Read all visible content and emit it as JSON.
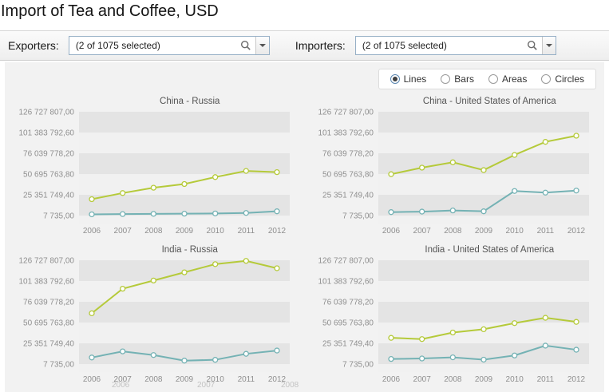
{
  "page": {
    "title": "Import of Tea and Coffee, USD"
  },
  "toolbar": {
    "exporters": {
      "label": "Exporters:",
      "value": "(2 of 1075 selected)"
    },
    "importers": {
      "label": "Importers:",
      "value": "(2 of 1075 selected)"
    }
  },
  "chart_controls": {
    "options": [
      {
        "label": "Lines",
        "selected": true
      },
      {
        "label": "Bars",
        "selected": false
      },
      {
        "label": "Areas",
        "selected": false
      },
      {
        "label": "Circles",
        "selected": false
      }
    ]
  },
  "ghost_labels": [
    "2006",
    "2007",
    "2008"
  ],
  "chart_data": [
    {
      "type": "line",
      "title": "China - Russia",
      "categories": [
        "2006",
        "2007",
        "2008",
        "2009",
        "2010",
        "2011",
        "2012"
      ],
      "y_ticks": [
        {
          "label": "126 727 807,00",
          "value": 126727807
        },
        {
          "label": "101 383 792,60",
          "value": 101383792.6
        },
        {
          "label": "76 039 778,20",
          "value": 76039778.2
        },
        {
          "label": "50 695 763,80",
          "value": 50695763.8
        },
        {
          "label": "25 351 749,40",
          "value": 25351749.4
        },
        {
          "label": "7 735,00",
          "value": 7735
        }
      ],
      "series": [
        {
          "name": "series-green",
          "color": "#b5ca3a",
          "values": [
            20000000,
            27500000,
            34000000,
            38500000,
            47000000,
            54500000,
            53000000
          ]
        },
        {
          "name": "series-teal",
          "color": "#74b2b4",
          "values": [
            1500000,
            1800000,
            2100000,
            2300000,
            2600000,
            3200000,
            5200000
          ]
        }
      ]
    },
    {
      "type": "line",
      "title": "China - United States of America",
      "categories": [
        "2006",
        "2007",
        "2008",
        "2009",
        "2010",
        "2011",
        "2012"
      ],
      "y_ticks": [
        {
          "label": "126 727 807,00",
          "value": 126727807
        },
        {
          "label": "101 383 792,60",
          "value": 101383792.6
        },
        {
          "label": "76 039 778,20",
          "value": 76039778.2
        },
        {
          "label": "50 695 763,80",
          "value": 50695763.8
        },
        {
          "label": "25 351 749,40",
          "value": 25351749.4
        },
        {
          "label": "7 735,00",
          "value": 7735
        }
      ],
      "series": [
        {
          "name": "series-green",
          "color": "#b5ca3a",
          "values": [
            50500000,
            58500000,
            65000000,
            55500000,
            74000000,
            90000000,
            97500000
          ]
        },
        {
          "name": "series-teal",
          "color": "#74b2b4",
          "values": [
            4200000,
            4800000,
            6200000,
            5200000,
            30000000,
            28000000,
            30500000
          ]
        }
      ]
    },
    {
      "type": "line",
      "title": "India - Russia",
      "categories": [
        "2006",
        "2007",
        "2008",
        "2009",
        "2010",
        "2011",
        "2012"
      ],
      "y_ticks": [
        {
          "label": "126 727 807,00",
          "value": 126727807
        },
        {
          "label": "101 383 792,60",
          "value": 101383792.6
        },
        {
          "label": "76 039 778,20",
          "value": 76039778.2
        },
        {
          "label": "50 695 763,80",
          "value": 50695763.8
        },
        {
          "label": "25 351 749,40",
          "value": 25351749.4
        },
        {
          "label": "7 735,00",
          "value": 7735
        }
      ],
      "series": [
        {
          "name": "series-green",
          "color": "#b5ca3a",
          "values": [
            62000000,
            92000000,
            102000000,
            112000000,
            122000000,
            126000000,
            117000000
          ]
        },
        {
          "name": "series-teal",
          "color": "#74b2b4",
          "values": [
            8000000,
            15500000,
            11000000,
            4200000,
            5200000,
            12500000,
            16500000
          ]
        }
      ]
    },
    {
      "type": "line",
      "title": "India - United States of America",
      "categories": [
        "2006",
        "2007",
        "2008",
        "2009",
        "2010",
        "2011",
        "2012"
      ],
      "y_ticks": [
        {
          "label": "126 727 807,00",
          "value": 126727807
        },
        {
          "label": "101 383 792,60",
          "value": 101383792.6
        },
        {
          "label": "76 039 778,20",
          "value": 76039778.2
        },
        {
          "label": "50 695 763,80",
          "value": 50695763.8
        },
        {
          "label": "25 351 749,40",
          "value": 25351749.4
        },
        {
          "label": "7 735,00",
          "value": 7735
        }
      ],
      "series": [
        {
          "name": "series-green",
          "color": "#b5ca3a",
          "values": [
            32000000,
            30500000,
            38500000,
            42500000,
            50000000,
            56500000,
            51500000
          ]
        },
        {
          "name": "series-teal",
          "color": "#74b2b4",
          "values": [
            6200000,
            6800000,
            8200000,
            5400000,
            10500000,
            22500000,
            17500000
          ]
        }
      ]
    }
  ]
}
